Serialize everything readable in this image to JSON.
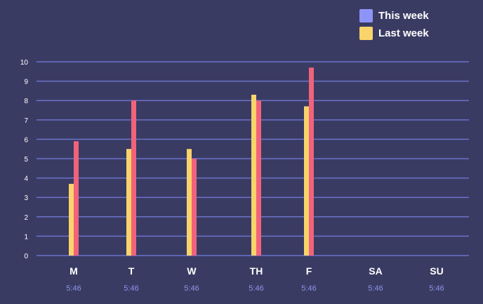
{
  "colors": {
    "background": "#3a3b63",
    "gridline": "#6b72c9",
    "axis_text": "#ffffff",
    "time_text": "#8e94e6"
  },
  "legend": {
    "items": [
      {
        "label": "This week",
        "color": "#8e94f7"
      },
      {
        "label": "Last week",
        "color": "#f9d46a"
      }
    ]
  },
  "chart_data": {
    "type": "bar",
    "title": "",
    "xlabel": "",
    "ylabel": "",
    "ylim": [
      0,
      10
    ],
    "yticks": [
      "0",
      "1",
      "2",
      "3",
      "4",
      "5",
      "6",
      "7",
      "8",
      "9",
      "10"
    ],
    "grid": true,
    "legend_position": "top-right",
    "categories": [
      "M",
      "T",
      "W",
      "TH",
      "F",
      "SA",
      "SU"
    ],
    "time_labels": [
      "5:46",
      "5:46",
      "5:46",
      "5:46",
      "5:46",
      "5:46",
      "5:46"
    ],
    "series": [
      {
        "color": "#f9d46a",
        "values": [
          3.7,
          5.5,
          5.5,
          8.3,
          7.7,
          null,
          null
        ]
      },
      {
        "color": "#f0637a",
        "values": [
          5.9,
          8.0,
          5.0,
          8.0,
          9.7,
          null,
          null
        ]
      }
    ]
  }
}
